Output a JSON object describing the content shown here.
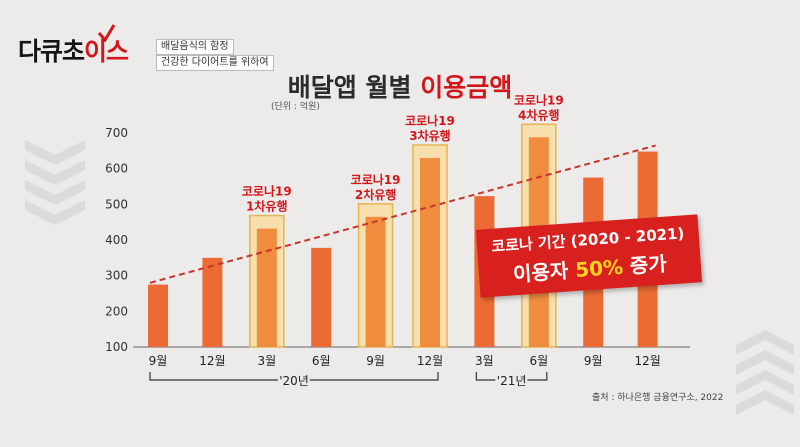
{
  "brand": {
    "logo_text": "다큐초",
    "logo_accent": "이스",
    "tag1": "배달음식의 함정",
    "tag2": "건강한 다이어트를 위하여"
  },
  "title": {
    "main": "배달앱 월별 ",
    "accent": "이용금액"
  },
  "unit_label": "(단위 : 억원)",
  "source": "출처 : 하나은행 금융연구소, 2022",
  "callout": {
    "line1": "코로나 기간 (2020 - 2021)",
    "line2_prefix": "이용자 ",
    "line2_highlight": "50%",
    "line2_suffix": " 증가"
  },
  "colors": {
    "bar": "#ec6a34",
    "bar_highlight": "#f08c3d",
    "highlight_box": "#f7dfae",
    "highlight_border": "#e6b450",
    "accent": "#d2171c",
    "trend": "#c8352a"
  },
  "chart_data": {
    "type": "bar",
    "categories": [
      "9월",
      "12월",
      "3월",
      "6월",
      "9월",
      "12월",
      "3월",
      "6월",
      "9월",
      "12월"
    ],
    "values": [
      275,
      350,
      432,
      378,
      465,
      630,
      523,
      688,
      575,
      648
    ],
    "highlighted": [
      2,
      4,
      5,
      7
    ],
    "ylim": [
      100,
      700
    ],
    "yticks": [
      100,
      200,
      300,
      400,
      500,
      600,
      700
    ],
    "trendline": {
      "start_value": 280,
      "end_value": 665
    },
    "annotations": [
      {
        "index": 2,
        "line1": "코로나19",
        "line2": "1차유행"
      },
      {
        "index": 4,
        "line1": "코로나19",
        "line2": "2차유행"
      },
      {
        "index": 5,
        "line1": "코로나19",
        "line2": "3차유행"
      },
      {
        "index": 7,
        "line1": "코로나19",
        "line2": "4차유행"
      }
    ],
    "year_groups": [
      {
        "label": "'20년",
        "start": 0,
        "end": 5
      },
      {
        "label": "'21년",
        "start": 6,
        "end": 7
      }
    ]
  }
}
